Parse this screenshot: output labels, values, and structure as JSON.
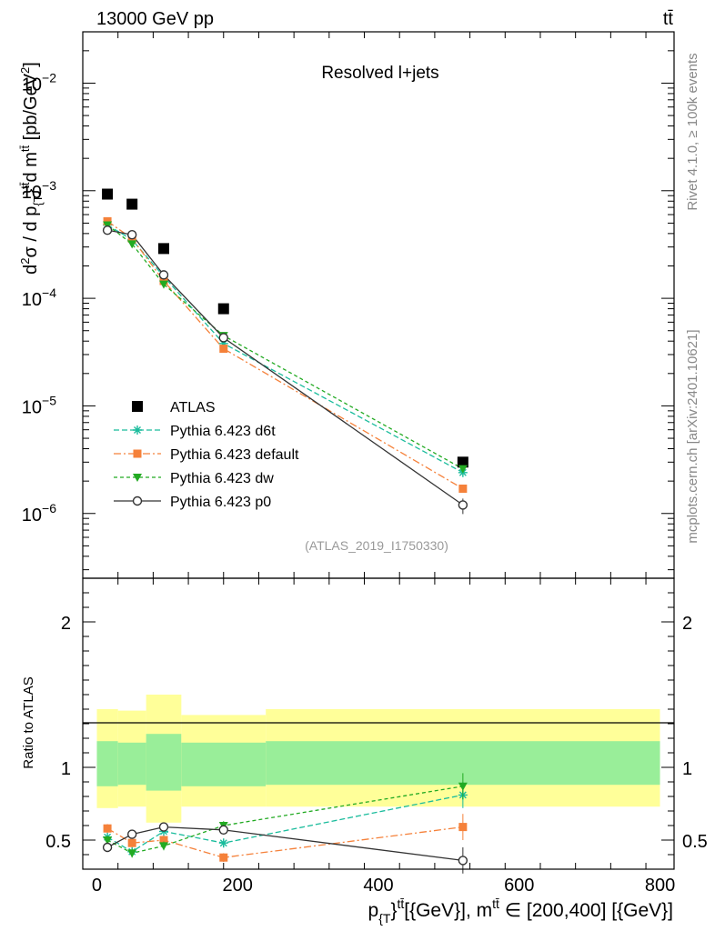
{
  "header": {
    "energy_label": "13000 GeV pp",
    "process_label": "tt̄"
  },
  "side_labels": {
    "rivet": "Rivet 4.1.0, ≥ 100k events",
    "mcplots": "mcplots.cern.ch [arXiv:2401.10621]"
  },
  "chart_data": [
    {
      "type": "scatter",
      "panel": "main",
      "title": "Resolved l+jets",
      "watermark": "(ATLAS_2019_I1750330)",
      "ylabel": "d²σ / d p_{T}^{tt̄} d m^{tt̄} [pb/GeV²]",
      "yscale": "log",
      "ylim": [
        2.5e-07,
        0.03
      ],
      "xlim": [
        -20,
        820
      ],
      "yticks": [
        {
          "value": 1e-06,
          "mant": "10",
          "exp": "−6"
        },
        {
          "value": 1e-05,
          "mant": "10",
          "exp": "−5"
        },
        {
          "value": 0.0001,
          "mant": "10",
          "exp": "−4"
        },
        {
          "value": 0.001,
          "mant": "10",
          "exp": "−3"
        },
        {
          "value": 0.01,
          "mant": "10",
          "exp": "−2"
        }
      ],
      "x": [
        15,
        50,
        95,
        180,
        520
      ],
      "series": [
        {
          "name": "ATLAS",
          "color": "#000000",
          "marker": "square",
          "dash": "none",
          "values": [
            0.00093,
            0.00075,
            0.00029,
            8e-05,
            3e-06
          ]
        },
        {
          "name": "Pythia 6.423 d6t",
          "color": "#1abc9c",
          "marker": "star",
          "dash": "6,3",
          "values": [
            0.00048,
            0.00035,
            0.00016,
            3.8e-05,
            2.4e-06
          ]
        },
        {
          "name": "Pythia 6.423 default",
          "color": "#f5813a",
          "marker": "square-small",
          "dash": "8,3,2,3",
          "values": [
            0.00052,
            0.00036,
            0.000145,
            3.4e-05,
            1.7e-06
          ]
        },
        {
          "name": "Pythia 6.423 dw",
          "color": "#22aa22",
          "marker": "triangle-down",
          "dash": "4,3",
          "values": [
            0.00048,
            0.00032,
            0.000135,
            4.5e-05,
            2.6e-06
          ]
        },
        {
          "name": "Pythia 6.423 p0",
          "color": "#333333",
          "marker": "circle-open",
          "dash": "none",
          "values": [
            0.00043,
            0.00039,
            0.000165,
            4.3e-05,
            1.2e-06
          ]
        }
      ]
    },
    {
      "type": "line",
      "panel": "ratio",
      "ylabel": "Ratio to ATLAS",
      "xlabel": "p_{T}^{tt̄} [GeV], m^{tt̄} ∈ [200,400] [GeV]",
      "ylim": [
        0.3,
        2.3
      ],
      "xlim": [
        -20,
        820
      ],
      "xticks": [
        0,
        200,
        400,
        600,
        800
      ],
      "yticks": [
        0.5,
        1,
        2
      ],
      "bins": [
        [
          0,
          30
        ],
        [
          30,
          70
        ],
        [
          70,
          120
        ],
        [
          120,
          240
        ],
        [
          240,
          800
        ]
      ],
      "band_inner": [
        [
          0.87,
          1.18
        ],
        [
          0.88,
          1.17
        ],
        [
          0.84,
          1.23
        ],
        [
          0.87,
          1.17
        ],
        [
          0.88,
          1.18
        ]
      ],
      "band_outer": [
        [
          0.72,
          1.4
        ],
        [
          0.73,
          1.39
        ],
        [
          0.62,
          1.5
        ],
        [
          0.73,
          1.36
        ],
        [
          0.73,
          1.4
        ]
      ],
      "x": [
        15,
        50,
        95,
        180,
        520
      ],
      "series": [
        {
          "name": "Pythia 6.423 d6t",
          "color": "#1abc9c",
          "marker": "star",
          "dash": "6,3",
          "values": [
            0.52,
            0.42,
            0.56,
            0.48,
            0.81
          ]
        },
        {
          "name": "Pythia 6.423 default",
          "color": "#f5813a",
          "marker": "square-small",
          "dash": "8,3,2,3",
          "values": [
            0.58,
            0.48,
            0.5,
            0.38,
            0.59
          ]
        },
        {
          "name": "Pythia 6.423 dw",
          "color": "#22aa22",
          "marker": "triangle-down",
          "dash": "4,3",
          "values": [
            0.5,
            0.41,
            0.46,
            0.6,
            0.87
          ]
        },
        {
          "name": "Pythia 6.423 p0",
          "color": "#333333",
          "marker": "circle-open",
          "dash": "none",
          "values": [
            0.45,
            0.54,
            0.59,
            0.57,
            0.36
          ]
        }
      ]
    }
  ]
}
